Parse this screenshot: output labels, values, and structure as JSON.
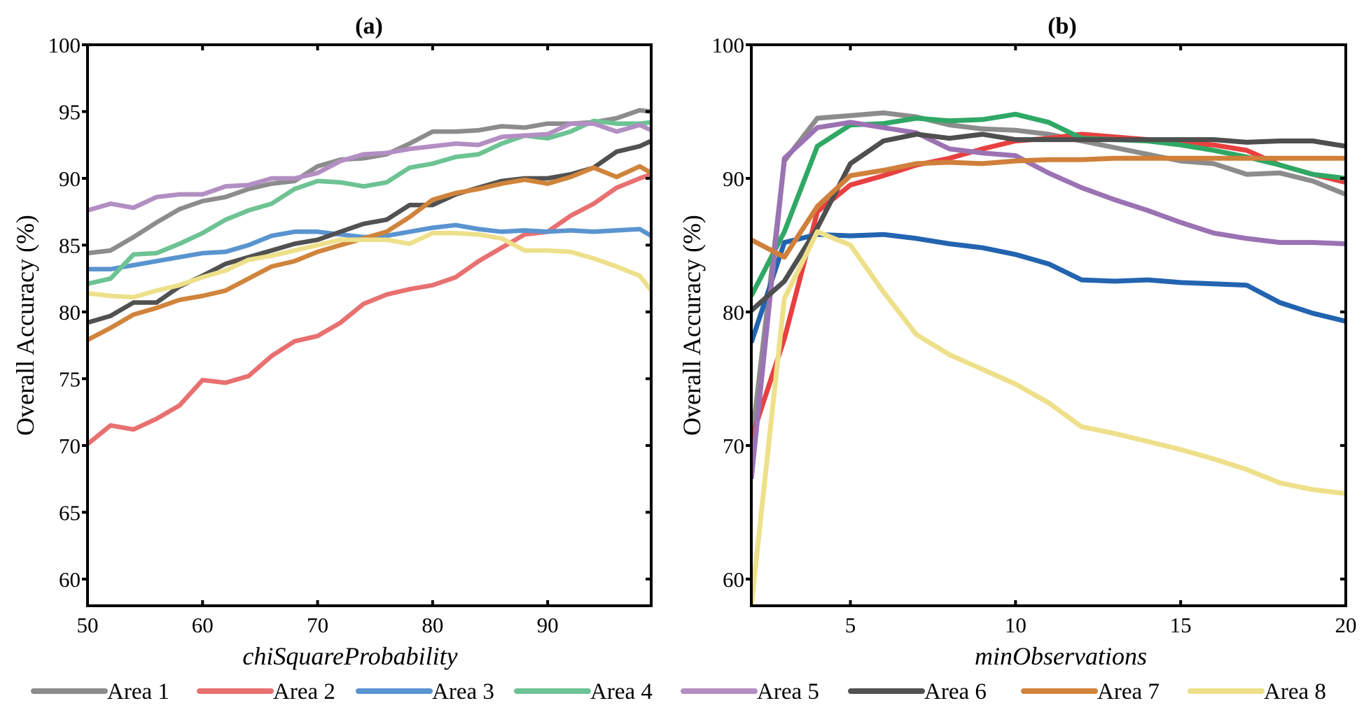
{
  "legend": {
    "placement": "bottom",
    "entries": [
      "Area 1",
      "Area 2",
      "Area 3",
      "Area 4",
      "Area 5",
      "Area 6",
      "Area 7",
      "Area 8"
    ]
  },
  "chart_data": [
    {
      "type": "line",
      "title": "(a)",
      "xlabel": "chiSquareProbability",
      "ylabel": "Overall Accuracy (%)",
      "xlim": [
        50,
        99
      ],
      "ylim": [
        58,
        100
      ],
      "xticks": [
        50,
        60,
        70,
        80,
        90
      ],
      "yticks": [
        60,
        65,
        70,
        75,
        80,
        85,
        90,
        95,
        100
      ],
      "grid": false,
      "x": [
        50,
        52,
        54,
        56,
        58,
        60,
        62,
        64,
        66,
        68,
        70,
        72,
        74,
        76,
        78,
        80,
        82,
        84,
        86,
        88,
        90,
        92,
        94,
        96,
        98,
        99
      ],
      "series": [
        {
          "name": "Area 1",
          "color": "#8c8c8c",
          "values": [
            84.4,
            84.6,
            85.6,
            86.7,
            87.7,
            88.3,
            88.6,
            89.2,
            89.6,
            89.8,
            90.9,
            91.4,
            91.5,
            91.8,
            92.6,
            93.5,
            93.5,
            93.6,
            93.9,
            93.8,
            94.1,
            94.1,
            94.2,
            94.5,
            95.1,
            95.0
          ]
        },
        {
          "name": "Area 2",
          "color": "#e87070",
          "values": [
            70.1,
            71.5,
            71.2,
            72.0,
            73.0,
            74.9,
            74.7,
            75.2,
            76.7,
            77.8,
            78.2,
            79.2,
            80.6,
            81.3,
            81.7,
            82.0,
            82.6,
            83.8,
            84.8,
            85.8,
            86.0,
            87.2,
            88.1,
            89.3,
            90.0,
            90.3
          ]
        },
        {
          "name": "Area 3",
          "color": "#5a94d0",
          "values": [
            83.2,
            83.2,
            83.5,
            83.8,
            84.1,
            84.4,
            84.5,
            85.0,
            85.7,
            86.0,
            86.0,
            85.8,
            85.6,
            85.7,
            86.0,
            86.3,
            86.5,
            86.2,
            86.0,
            86.1,
            86.0,
            86.1,
            86.0,
            86.1,
            86.2,
            85.7
          ]
        },
        {
          "name": "Area 4",
          "color": "#6dc393",
          "values": [
            82.1,
            82.5,
            84.3,
            84.4,
            85.1,
            85.9,
            86.9,
            87.6,
            88.1,
            89.2,
            89.8,
            89.7,
            89.4,
            89.7,
            90.8,
            91.1,
            91.6,
            91.8,
            92.6,
            93.2,
            93.0,
            93.5,
            94.3,
            94.1,
            94.1,
            94.2
          ]
        },
        {
          "name": "Area 5",
          "color": "#b38ec2",
          "values": [
            87.6,
            88.1,
            87.8,
            88.6,
            88.8,
            88.8,
            89.4,
            89.5,
            90.0,
            90.0,
            90.4,
            91.3,
            91.8,
            91.9,
            92.2,
            92.4,
            92.6,
            92.5,
            93.1,
            93.2,
            93.3,
            94.1,
            94.1,
            93.5,
            94.0,
            93.6
          ]
        },
        {
          "name": "Area 6",
          "color": "#505150",
          "values": [
            79.2,
            79.7,
            80.7,
            80.7,
            81.9,
            82.7,
            83.6,
            84.1,
            84.6,
            85.1,
            85.4,
            86.0,
            86.6,
            86.9,
            88.0,
            88.0,
            88.8,
            89.3,
            89.8,
            90.0,
            90.0,
            90.3,
            90.8,
            92.0,
            92.4,
            92.8
          ]
        },
        {
          "name": "Area 7",
          "color": "#d0843b",
          "values": [
            77.9,
            78.8,
            79.8,
            80.3,
            80.9,
            81.2,
            81.6,
            82.5,
            83.4,
            83.8,
            84.5,
            85.0,
            85.5,
            86.0,
            87.1,
            88.4,
            88.9,
            89.2,
            89.6,
            89.9,
            89.6,
            90.1,
            90.8,
            90.1,
            90.9,
            90.4
          ]
        },
        {
          "name": "Area 8",
          "color": "#eee08a",
          "values": [
            81.4,
            81.2,
            81.1,
            81.6,
            82.0,
            82.6,
            83.1,
            83.9,
            84.2,
            84.6,
            85.0,
            85.4,
            85.4,
            85.4,
            85.1,
            85.9,
            85.9,
            85.8,
            85.5,
            84.6,
            84.6,
            84.5,
            84.0,
            83.4,
            82.7,
            81.6
          ]
        }
      ]
    },
    {
      "type": "line",
      "title": "(b)",
      "xlabel": "minObservations",
      "ylabel": "Overall Accuracy (%)",
      "xlim": [
        2,
        20
      ],
      "ylim": [
        58,
        100
      ],
      "xticks": [
        5,
        10,
        15,
        20
      ],
      "yticks": [
        60,
        70,
        80,
        90,
        100
      ],
      "grid": false,
      "x": [
        2,
        3,
        4,
        5,
        6,
        7,
        8,
        9,
        10,
        11,
        12,
        13,
        14,
        15,
        16,
        17,
        18,
        19,
        20
      ],
      "series": [
        {
          "name": "Area 1",
          "color": "#8c8c8c",
          "values": [
            70.0,
            91.3,
            94.5,
            94.7,
            94.9,
            94.6,
            94.0,
            93.7,
            93.6,
            93.3,
            92.8,
            92.3,
            91.8,
            91.3,
            91.1,
            90.3,
            90.4,
            89.8,
            88.8
          ]
        },
        {
          "name": "Area 2",
          "color": "#e84040",
          "values": [
            70.5,
            78.0,
            87.5,
            89.5,
            90.2,
            91.0,
            91.5,
            92.2,
            92.8,
            93.0,
            93.3,
            93.1,
            92.9,
            92.7,
            92.5,
            92.1,
            91.0,
            90.3,
            89.7
          ]
        },
        {
          "name": "Area 3",
          "color": "#2364b0",
          "values": [
            77.7,
            85.2,
            85.8,
            85.7,
            85.8,
            85.5,
            85.1,
            84.8,
            84.3,
            83.6,
            82.4,
            82.3,
            82.4,
            82.2,
            82.1,
            82.0,
            80.7,
            79.9,
            79.3
          ]
        },
        {
          "name": "Area 4",
          "color": "#2fa865",
          "values": [
            81.2,
            86.0,
            92.4,
            94.0,
            94.1,
            94.5,
            94.3,
            94.4,
            94.8,
            94.2,
            93.0,
            92.9,
            92.8,
            92.5,
            92.1,
            91.6,
            91.0,
            90.3,
            90.0
          ]
        },
        {
          "name": "Area 5",
          "color": "#9b72b3",
          "values": [
            67.5,
            91.5,
            93.8,
            94.2,
            93.8,
            93.4,
            92.2,
            91.9,
            91.7,
            90.4,
            89.3,
            88.4,
            87.6,
            86.7,
            85.9,
            85.5,
            85.2,
            85.2,
            85.1
          ]
        },
        {
          "name": "Area 6",
          "color": "#4f4f4f",
          "values": [
            80.1,
            82.3,
            86.3,
            91.1,
            92.8,
            93.3,
            93.0,
            93.3,
            92.9,
            92.9,
            92.9,
            92.9,
            92.9,
            92.9,
            92.9,
            92.7,
            92.8,
            92.8,
            92.4
          ]
        },
        {
          "name": "Area 7",
          "color": "#d0803a",
          "values": [
            85.4,
            84.1,
            87.9,
            90.2,
            90.6,
            91.1,
            91.2,
            91.1,
            91.3,
            91.4,
            91.4,
            91.5,
            91.5,
            91.5,
            91.5,
            91.5,
            91.5,
            91.5,
            91.5
          ]
        },
        {
          "name": "Area 8",
          "color": "#eee08a",
          "values": [
            58.0,
            81.0,
            86.0,
            85.0,
            81.5,
            78.3,
            76.8,
            75.7,
            74.6,
            73.2,
            71.4,
            70.9,
            70.3,
            69.7,
            69.0,
            68.2,
            67.2,
            66.7,
            66.4
          ]
        }
      ]
    }
  ]
}
